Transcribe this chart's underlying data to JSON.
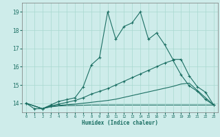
{
  "xlabel": "Humidex (Indice chaleur)",
  "background_color": "#ceecea",
  "line_color": "#1a6e62",
  "xlim": [
    -0.5,
    23.5
  ],
  "ylim": [
    13.5,
    19.5
  ],
  "yticks": [
    14,
    15,
    16,
    17,
    18,
    19
  ],
  "xticks": [
    0,
    1,
    2,
    3,
    4,
    5,
    6,
    7,
    8,
    9,
    10,
    11,
    12,
    13,
    14,
    15,
    16,
    17,
    18,
    19,
    20,
    21,
    22,
    23
  ],
  "s1_x": [
    0,
    1,
    2,
    3,
    4,
    5,
    6,
    7,
    8,
    9,
    10,
    11,
    12,
    13,
    14,
    15,
    16,
    17,
    18,
    19,
    20,
    21,
    22,
    23
  ],
  "s1_y": [
    14.0,
    13.7,
    13.7,
    13.9,
    14.1,
    14.2,
    14.3,
    14.9,
    16.1,
    16.5,
    19.0,
    17.5,
    18.2,
    18.4,
    19.0,
    17.5,
    17.85,
    17.2,
    16.4,
    16.4,
    15.5,
    14.9,
    14.6,
    13.9
  ],
  "s2_x": [
    0,
    2,
    3,
    4,
    5,
    6,
    7,
    8,
    9,
    10,
    11,
    12,
    13,
    14,
    15,
    16,
    17,
    18,
    19,
    20,
    21,
    22,
    23
  ],
  "s2_y": [
    14.0,
    13.7,
    13.85,
    13.95,
    14.05,
    14.15,
    14.3,
    14.5,
    14.65,
    14.8,
    15.0,
    15.2,
    15.4,
    15.6,
    15.8,
    16.0,
    16.2,
    16.35,
    15.55,
    14.95,
    14.65,
    14.2,
    13.9
  ],
  "s3_x": [
    0,
    2,
    3,
    4,
    5,
    6,
    7,
    8,
    9,
    10,
    11,
    12,
    13,
    14,
    15,
    16,
    17,
    18,
    19,
    20,
    21,
    22,
    23
  ],
  "s3_y": [
    14.0,
    13.7,
    13.82,
    13.88,
    13.92,
    13.95,
    14.0,
    14.05,
    14.1,
    14.15,
    14.22,
    14.32,
    14.42,
    14.52,
    14.62,
    14.72,
    14.82,
    14.92,
    15.05,
    15.1,
    14.7,
    14.3,
    13.9
  ],
  "s4_x": [
    0,
    2,
    3,
    4,
    5,
    6,
    7,
    8,
    9,
    10,
    11,
    12,
    13,
    14,
    15,
    16,
    17,
    18,
    19,
    20,
    21,
    22,
    23
  ],
  "s4_y": [
    14.0,
    13.7,
    13.8,
    13.85,
    13.87,
    13.88,
    13.89,
    13.9,
    13.9,
    13.9,
    13.9,
    13.9,
    13.9,
    13.9,
    13.9,
    13.9,
    13.9,
    13.9,
    13.9,
    13.9,
    13.9,
    13.9,
    13.9
  ]
}
